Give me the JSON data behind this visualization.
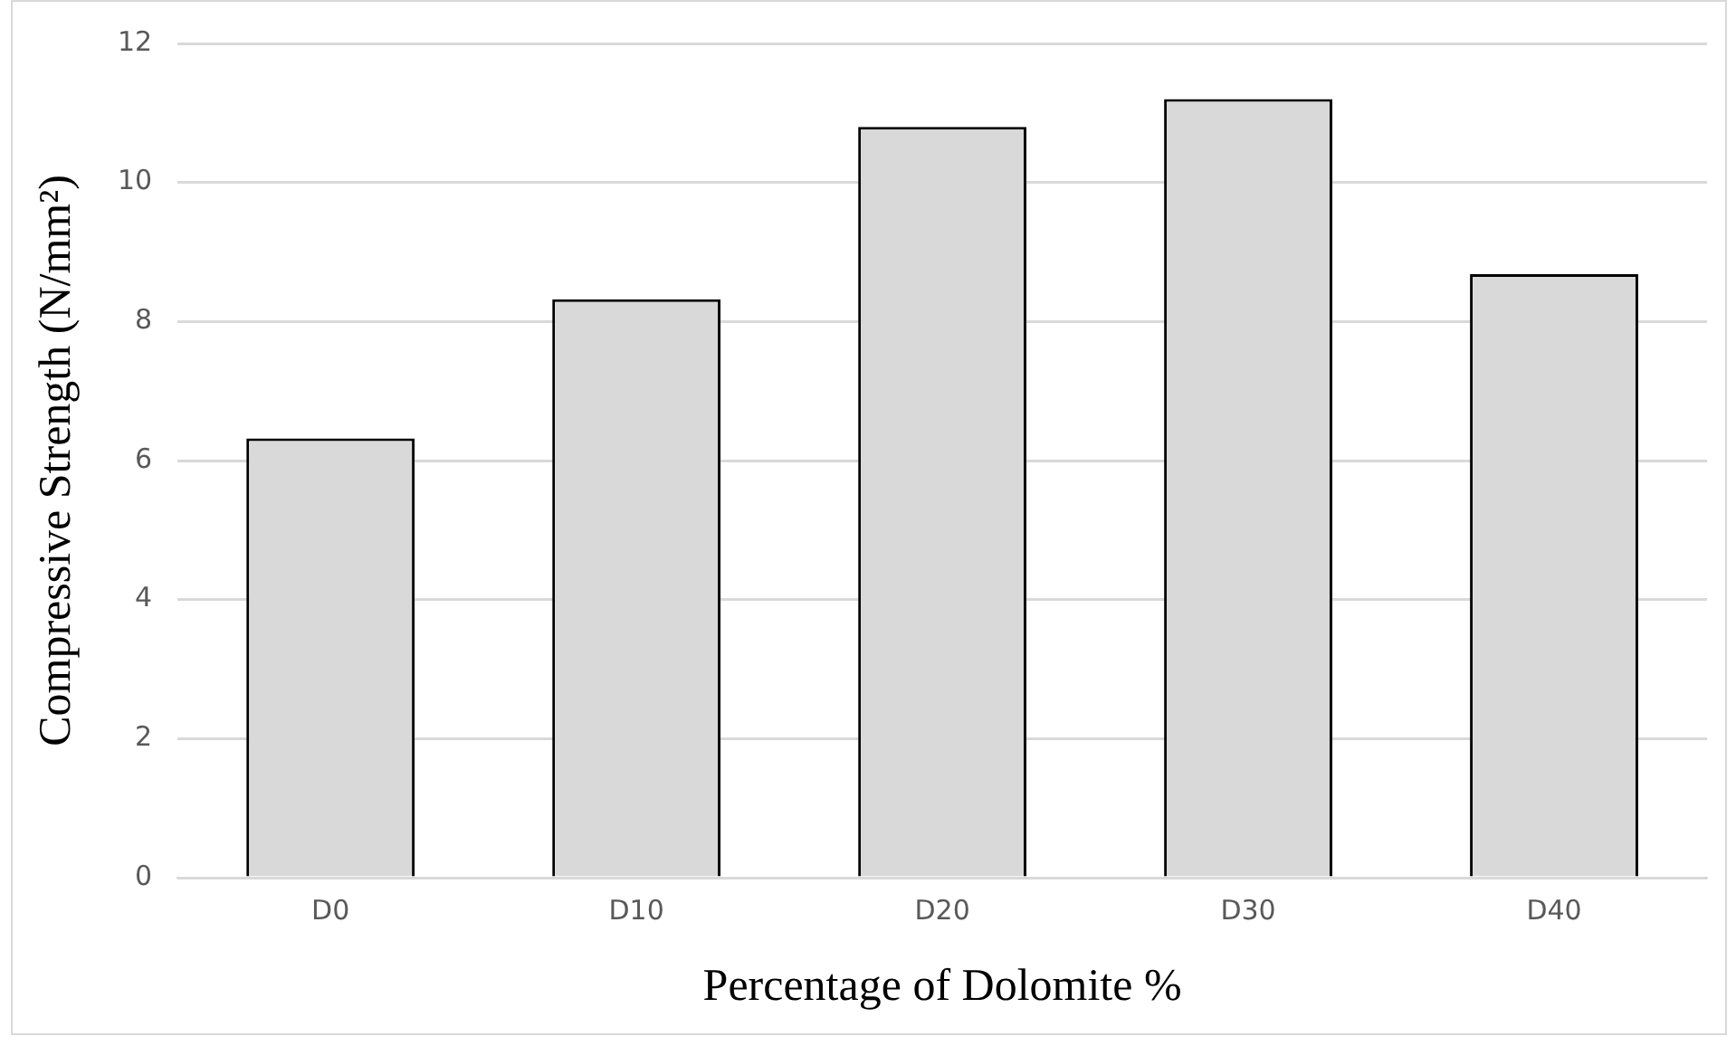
{
  "chart_data": {
    "type": "bar",
    "xlabel": "Percentage of Dolomite %",
    "ylabel": "Compressive Strength (N/mm²)",
    "categories": [
      "D0",
      "D10",
      "D20",
      "D30",
      "D40"
    ],
    "values": [
      6.32,
      8.32,
      10.8,
      11.2,
      8.68
    ],
    "color": "#d9d9d9",
    "ylim": [
      0,
      12
    ],
    "yticks": [
      0,
      2,
      4,
      6,
      8,
      10,
      12
    ],
    "grid": "y"
  }
}
